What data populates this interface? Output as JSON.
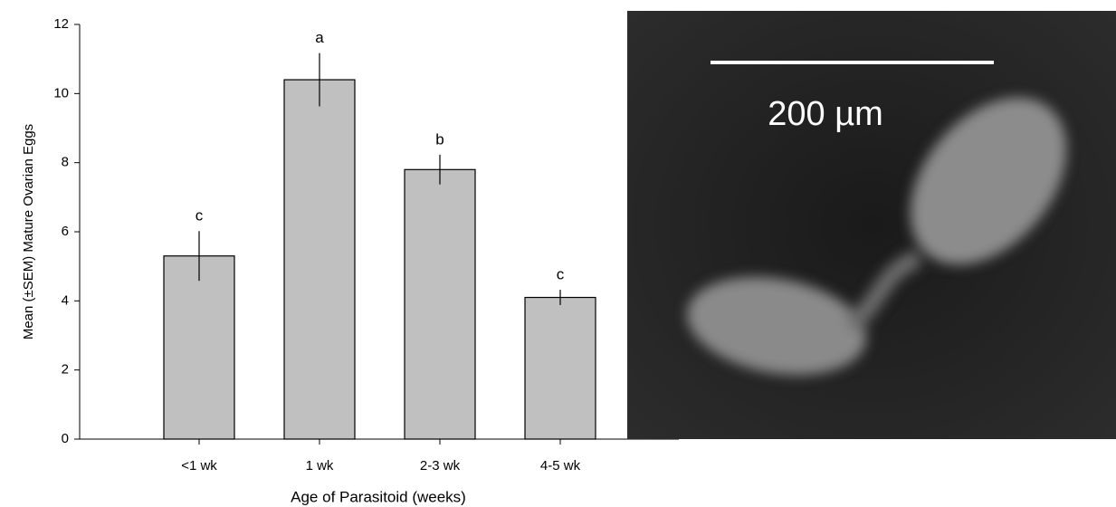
{
  "chart_data": {
    "type": "bar",
    "x_label": "Age of Parasitoid (weeks)",
    "y_label": "Mean (±SEM) Mature Ovarian Eggs",
    "categories": [
      "<1 wk",
      "1 wk",
      "2-3 wk",
      "4-5 wk"
    ],
    "values": [
      5.3,
      10.4,
      7.8,
      4.1
    ],
    "errors": [
      0.72,
      0.77,
      0.43,
      0.22
    ],
    "annotations": [
      "c",
      "a",
      "b",
      "c"
    ],
    "color": "#c0c0c0",
    "ylim": [
      0,
      12
    ],
    "yticks": [
      0,
      2,
      4,
      6,
      8,
      10,
      12
    ]
  },
  "image": {
    "scale_label": "200 µm"
  }
}
